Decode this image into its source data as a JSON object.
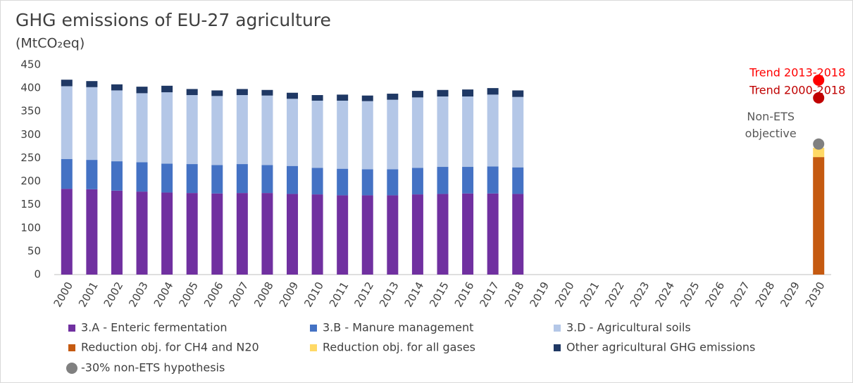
{
  "chart_data": {
    "type": "bar",
    "stacked": true,
    "title": "GHG emissions of EU-27 agriculture",
    "subtitle": "(MtCO₂eq)",
    "categories": [
      "2000",
      "2001",
      "2002",
      "2003",
      "2004",
      "2005",
      "2006",
      "2007",
      "2008",
      "2009",
      "2010",
      "2011",
      "2012",
      "2013",
      "2014",
      "2015",
      "2016",
      "2017",
      "2018",
      "2019",
      "2020",
      "2021",
      "2022",
      "2023",
      "2024",
      "2025",
      "2026",
      "2027",
      "2028",
      "2029",
      "2030"
    ],
    "series": [
      {
        "name": "3.A - Enteric fermentation",
        "color": "#7030a0",
        "values": [
          184,
          183,
          180,
          178,
          176,
          175,
          174,
          175,
          175,
          173,
          172,
          170,
          170,
          170,
          172,
          173,
          174,
          174,
          173,
          null,
          null,
          null,
          null,
          null,
          null,
          null,
          null,
          null,
          null,
          null,
          null
        ]
      },
      {
        "name": "3.B - Manure management",
        "color": "#4472c4",
        "values": [
          64,
          63,
          63,
          63,
          62,
          62,
          61,
          62,
          60,
          60,
          57,
          57,
          56,
          56,
          57,
          58,
          57,
          58,
          57,
          null,
          null,
          null,
          null,
          null,
          null,
          null,
          null,
          null,
          null,
          null,
          null
        ]
      },
      {
        "name": "3.D - Agricultural soils",
        "color": "#b4c7e7",
        "values": [
          156,
          156,
          152,
          148,
          153,
          148,
          148,
          148,
          149,
          144,
          144,
          146,
          146,
          149,
          151,
          151,
          151,
          154,
          151,
          null,
          null,
          null,
          null,
          null,
          null,
          null,
          null,
          null,
          null,
          null,
          null
        ]
      },
      {
        "name": "Reduction obj. for CH4 and N20",
        "color": "#c55a11",
        "values": [
          null,
          null,
          null,
          null,
          null,
          null,
          null,
          null,
          null,
          null,
          null,
          null,
          null,
          null,
          null,
          null,
          null,
          null,
          null,
          null,
          null,
          null,
          null,
          null,
          null,
          null,
          null,
          null,
          null,
          null,
          252
        ]
      },
      {
        "name": "Reduction obj. for all gases",
        "color": "#ffd966",
        "values": [
          null,
          null,
          null,
          null,
          null,
          null,
          null,
          null,
          null,
          null,
          null,
          null,
          null,
          null,
          null,
          null,
          null,
          null,
          null,
          null,
          null,
          null,
          null,
          null,
          null,
          null,
          null,
          null,
          null,
          null,
          20
        ]
      },
      {
        "name": "Other agricultural GHG emissions",
        "color": "#1f3864",
        "values": [
          14,
          13,
          13,
          14,
          14,
          13,
          12,
          13,
          12,
          13,
          12,
          13,
          12,
          13,
          14,
          14,
          15,
          14,
          14,
          null,
          null,
          null,
          null,
          null,
          null,
          null,
          null,
          null,
          null,
          null,
          null
        ]
      }
    ],
    "markers": [
      {
        "name": "-30% non-ETS hypothesis",
        "color": "#808080",
        "x": "2030",
        "value": 280,
        "annotation": [
          "Non-ETS",
          "objective"
        ],
        "annotation_color": "#595959"
      },
      {
        "color": "#ff0000",
        "x": "2030",
        "value": 417,
        "annotation": [
          "Trend 2013-2018"
        ],
        "annotation_color": "#ff0000"
      },
      {
        "color": "#c00000",
        "x": "2030",
        "value": 379,
        "annotation": [
          "Trend 2000-2018"
        ],
        "annotation_color": "#c00000"
      }
    ],
    "ylim": [
      0,
      450
    ],
    "yticks": [
      0,
      50,
      100,
      150,
      200,
      250,
      300,
      350,
      400,
      450
    ],
    "grid": false,
    "legend": "bottom"
  }
}
